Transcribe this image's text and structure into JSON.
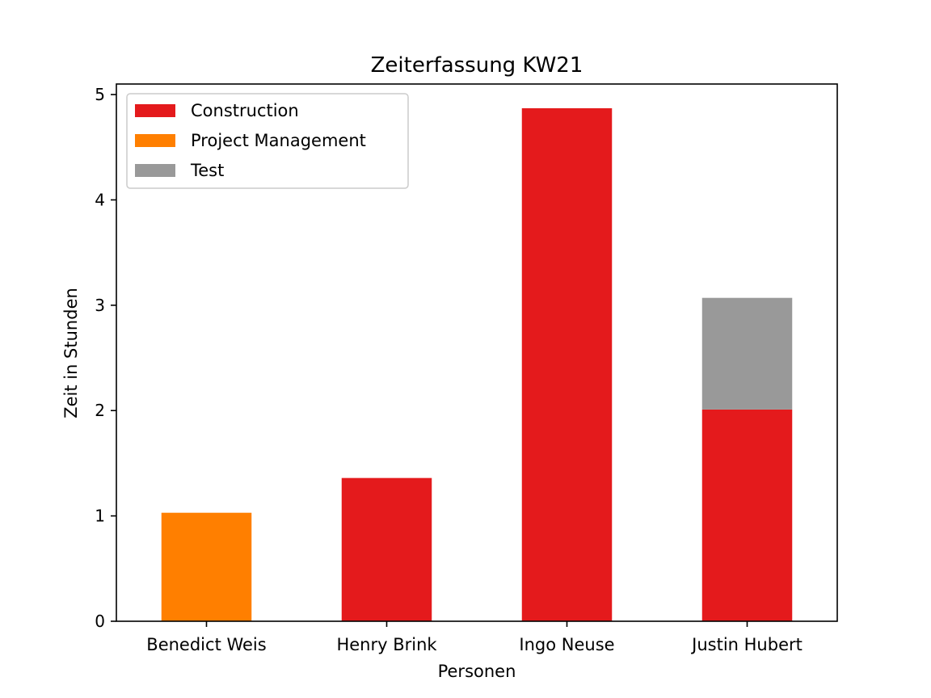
{
  "chart_data": {
    "type": "bar",
    "stacked": true,
    "title": "Zeiterfassung KW21",
    "xlabel": "Personen",
    "ylabel": "Zeit in Stunden",
    "categories": [
      "Benedict Weis",
      "Henry Brink",
      "Ingo Neuse",
      "Justin Hubert"
    ],
    "ylim": [
      0,
      5.1
    ],
    "yticks": [
      0,
      1,
      2,
      3,
      4,
      5
    ],
    "ytick_labels": [
      "0",
      "1",
      "2",
      "3",
      "4",
      "5"
    ],
    "grid": false,
    "legend_position": "top-left",
    "series": [
      {
        "name": "Construction",
        "color": "#e41a1c",
        "values": [
          0,
          1.36,
          4.87,
          2.01
        ]
      },
      {
        "name": "Project Management",
        "color": "#ff7f00",
        "values": [
          1.03,
          0,
          0,
          0
        ]
      },
      {
        "name": "Test",
        "color": "#999999",
        "values": [
          0,
          0,
          0,
          1.06
        ]
      }
    ]
  }
}
